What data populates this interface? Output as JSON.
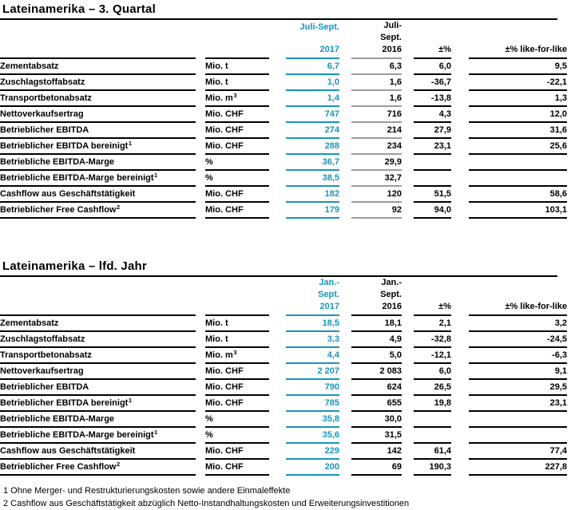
{
  "colors": {
    "accent_teal": "#1894be",
    "prior_gray": "#9b9b9b",
    "text_black": "#000000"
  },
  "tables": [
    {
      "title": "Lateinamerika – 3. Quartal",
      "prior_underline": "#9b9b9b",
      "header": {
        "current_lines": [
          "Juli-Sept.",
          "2017"
        ],
        "prior_lines": [
          "Juli-",
          "Sept.",
          "2016"
        ],
        "pct_label": "±%",
        "lfl_label": "±% like-for-like"
      },
      "rows": [
        {
          "label": "Zementabsatz",
          "label_sup": "",
          "unit": "Mio. t",
          "unit_sup": "",
          "current": "6,7",
          "prior": "6,3",
          "change_pct": "6,0",
          "change_lfl": "9,5"
        },
        {
          "label": "Zuschlagstoffabsatz",
          "label_sup": "",
          "unit": "Mio. t",
          "unit_sup": "",
          "current": "1,0",
          "prior": "1,6",
          "change_pct": "-36,7",
          "change_lfl": "-22,1"
        },
        {
          "label": "Transportbetonabsatz",
          "label_sup": "",
          "unit": "Mio. m",
          "unit_sup": "3",
          "current": "1,4",
          "prior": "1,6",
          "change_pct": "-13,8",
          "change_lfl": "1,3"
        },
        {
          "label": "Nettoverkaufsertrag",
          "label_sup": "",
          "unit": "Mio. CHF",
          "unit_sup": "",
          "current": "747",
          "prior": "716",
          "change_pct": "4,3",
          "change_lfl": "12,0"
        },
        {
          "label": "Betrieblicher EBITDA",
          "label_sup": "",
          "unit": "Mio. CHF",
          "unit_sup": "",
          "current": "274",
          "prior": "214",
          "change_pct": "27,9",
          "change_lfl": "31,6"
        },
        {
          "label": "Betrieblicher EBITDA bereinigt",
          "label_sup": "1",
          "unit": "Mio. CHF",
          "unit_sup": "",
          "current": "288",
          "prior": "234",
          "change_pct": "23,1",
          "change_lfl": "25,6"
        },
        {
          "label": "Betriebliche EBITDA-Marge",
          "label_sup": "",
          "unit": "%",
          "unit_sup": "",
          "current": "36,7",
          "prior": "29,9",
          "change_pct": "",
          "change_lfl": ""
        },
        {
          "label": "Betriebliche EBITDA-Marge bereinigt",
          "label_sup": "1",
          "unit": "%",
          "unit_sup": "",
          "current": "38,5",
          "prior": "32,7",
          "change_pct": "",
          "change_lfl": ""
        },
        {
          "label": "Cashflow aus Geschäftstätigkeit",
          "label_sup": "",
          "unit": "Mio. CHF",
          "unit_sup": "",
          "current": "182",
          "prior": "120",
          "change_pct": "51,5",
          "change_lfl": "58,6"
        },
        {
          "label": "Betrieblicher Free Cashflow",
          "label_sup": "2",
          "unit": "Mio. CHF",
          "unit_sup": "",
          "current": "179",
          "prior": "92",
          "change_pct": "94,0",
          "change_lfl": "103,1"
        }
      ]
    },
    {
      "title": "Lateinamerika – lfd. Jahr",
      "prior_underline": "#000000",
      "header": {
        "current_lines": [
          "Jan.-",
          "Sept.",
          "2017"
        ],
        "prior_lines": [
          "Jan.-",
          "Sept.",
          "2016"
        ],
        "pct_label": "±%",
        "lfl_label": "±% like-for-like"
      },
      "rows": [
        {
          "label": "Zementabsatz",
          "label_sup": "",
          "unit": "Mio. t",
          "unit_sup": "",
          "current": "18,5",
          "prior": "18,1",
          "change_pct": "2,1",
          "change_lfl": "3,2"
        },
        {
          "label": "Zuschlagstoffabsatz",
          "label_sup": "",
          "unit": "Mio. t",
          "unit_sup": "",
          "current": "3,3",
          "prior": "4,9",
          "change_pct": "-32,8",
          "change_lfl": "-24,5"
        },
        {
          "label": "Transportbetonabsatz",
          "label_sup": "",
          "unit": "Mio. m",
          "unit_sup": "3",
          "current": "4,4",
          "prior": "5,0",
          "change_pct": "-12,1",
          "change_lfl": "-6,3"
        },
        {
          "label": "Nettoverkaufsertrag",
          "label_sup": "",
          "unit": "Mio. CHF",
          "unit_sup": "",
          "current": "2 207",
          "prior": "2 083",
          "change_pct": "6,0",
          "change_lfl": "9,1"
        },
        {
          "label": "Betrieblicher EBITDA",
          "label_sup": "",
          "unit": "Mio. CHF",
          "unit_sup": "",
          "current": "790",
          "prior": "624",
          "change_pct": "26,5",
          "change_lfl": "29,5"
        },
        {
          "label": "Betrieblicher EBITDA bereinigt",
          "label_sup": "1",
          "unit": "Mio. CHF",
          "unit_sup": "",
          "current": "785",
          "prior": "655",
          "change_pct": "19,8",
          "change_lfl": "23,1"
        },
        {
          "label": "Betriebliche EBITDA-Marge",
          "label_sup": "",
          "unit": "%",
          "unit_sup": "",
          "current": "35,8",
          "prior": "30,0",
          "change_pct": "",
          "change_lfl": ""
        },
        {
          "label": "Betriebliche EBITDA-Marge bereinigt",
          "label_sup": "1",
          "unit": "%",
          "unit_sup": "",
          "current": "35,6",
          "prior": "31,5",
          "change_pct": "",
          "change_lfl": ""
        },
        {
          "label": "Cashflow aus Geschäftstätigkeit",
          "label_sup": "",
          "unit": "Mio. CHF",
          "unit_sup": "",
          "current": "229",
          "prior": "142",
          "change_pct": "61,4",
          "change_lfl": "77,4"
        },
        {
          "label": "Betrieblicher Free Cashflow",
          "label_sup": "2",
          "unit": "Mio. CHF",
          "unit_sup": "",
          "current": "200",
          "prior": "69",
          "change_pct": "190,3",
          "change_lfl": "227,8"
        }
      ]
    }
  ],
  "footnotes": [
    "1 Ohne Merger- und Restrukturierungskosten sowie andere Einmaleffekte",
    "2 Cashflow aus Geschäftstätigkeit abzüglich Netto-Instandhaltungskosten und Erweiterungsinvestitionen"
  ]
}
